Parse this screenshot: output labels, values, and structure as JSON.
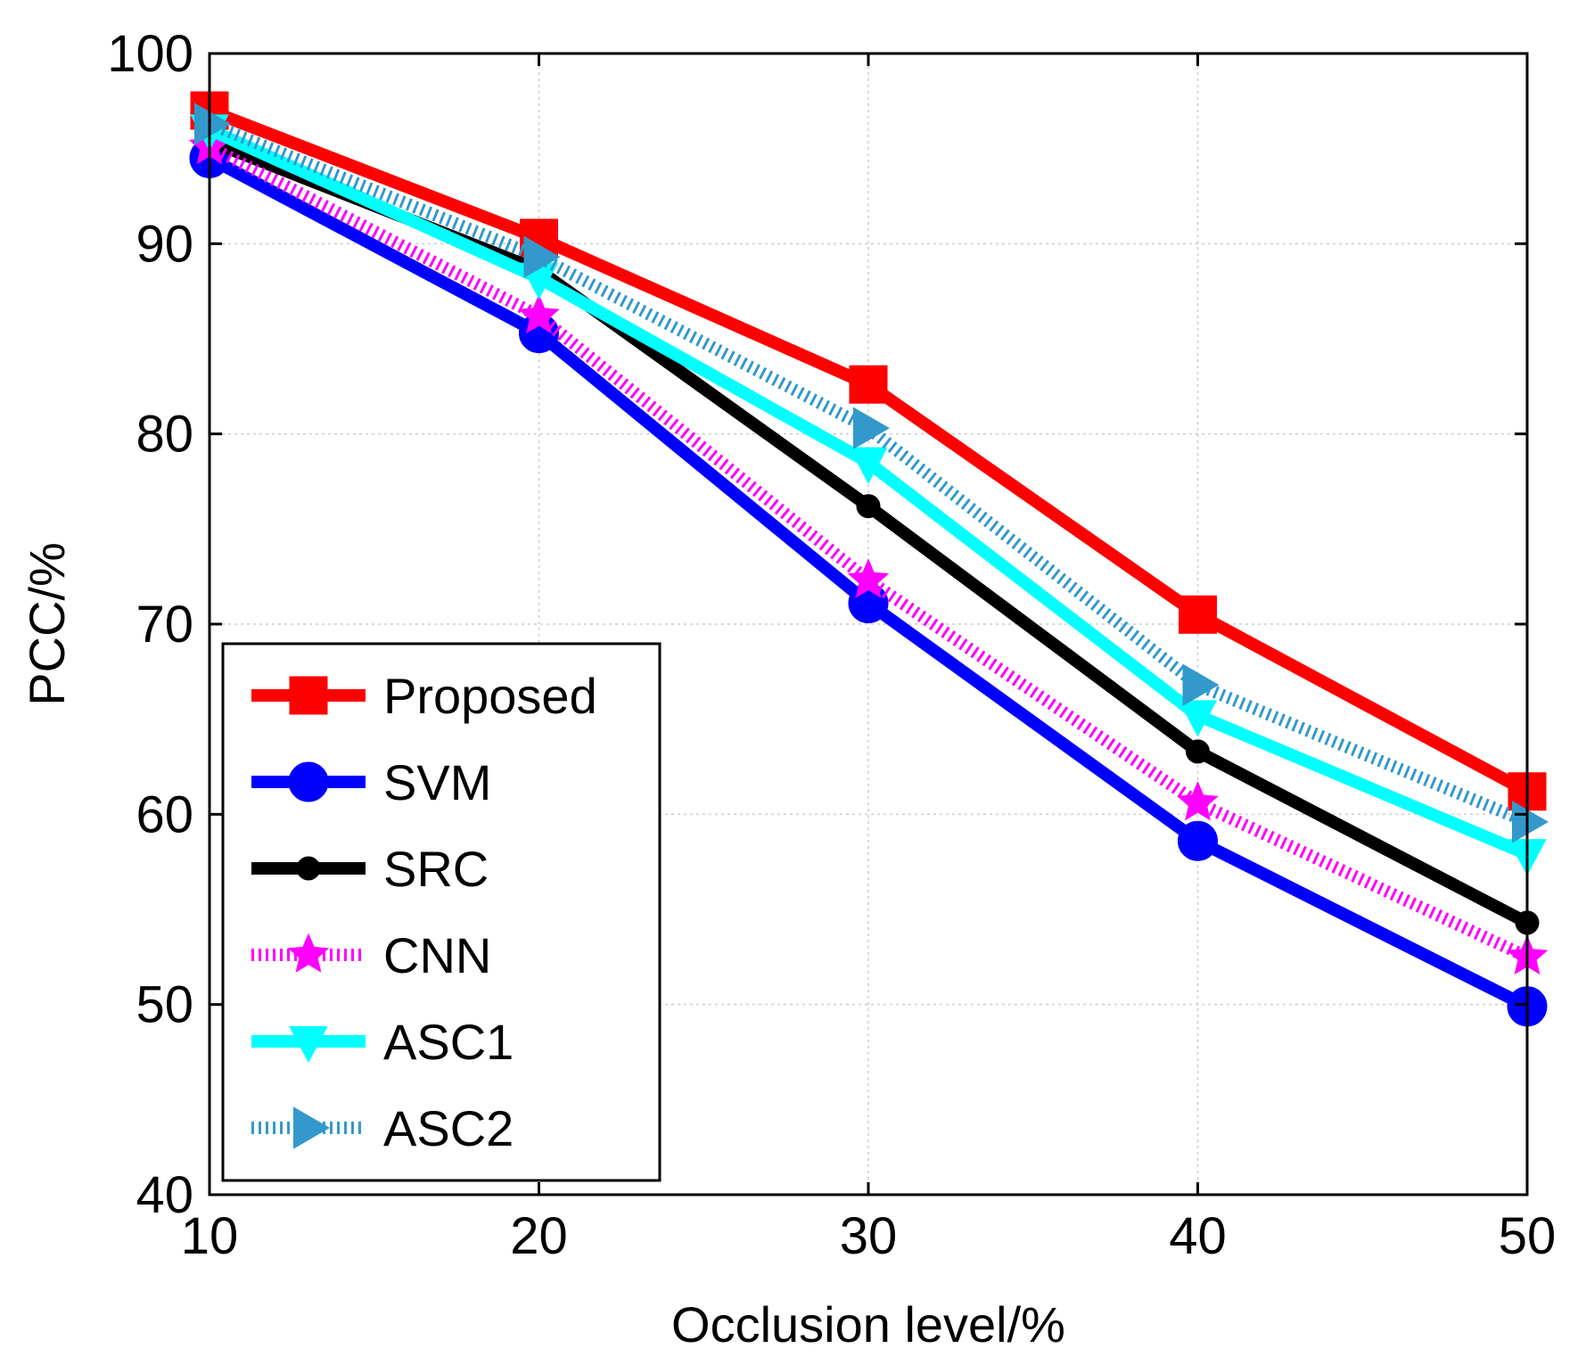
{
  "chart_data": {
    "type": "line",
    "title": "",
    "xlabel": "Occlusion level/%",
    "ylabel": "PCC/%",
    "x": [
      10,
      20,
      30,
      40,
      50
    ],
    "xlim": [
      10,
      50
    ],
    "ylim": [
      40,
      100
    ],
    "xticks": [
      "10",
      "20",
      "30",
      "40",
      "50"
    ],
    "yticks": [
      "40",
      "50",
      "60",
      "70",
      "80",
      "90",
      "100"
    ],
    "grid": true,
    "legend_position": "lower-left",
    "series": [
      {
        "name": "Proposed",
        "values": [
          97,
          90.3,
          82.6,
          70.5,
          61.2
        ],
        "color": "#ff0000",
        "marker": "square",
        "style": "solid"
      },
      {
        "name": "SVM",
        "values": [
          94.5,
          85.3,
          71.1,
          58.6,
          49.9
        ],
        "color": "#0000ff",
        "marker": "circle",
        "style": "solid"
      },
      {
        "name": "SRC",
        "values": [
          95.4,
          88.6,
          76.2,
          63.3,
          54.3
        ],
        "color": "#000000",
        "marker": "dot",
        "style": "solid"
      },
      {
        "name": "CNN",
        "values": [
          95.1,
          86.2,
          72.3,
          60.6,
          52.5
        ],
        "color": "#ff00ff",
        "marker": "star",
        "style": "dotted"
      },
      {
        "name": "ASC1",
        "values": [
          96,
          88.2,
          78.5,
          65.2,
          57.9
        ],
        "color": "#00ffff",
        "marker": "triangle-down",
        "style": "solid"
      },
      {
        "name": "ASC2",
        "values": [
          96.3,
          89.3,
          80.3,
          66.8,
          59.6
        ],
        "color": "#3399cc",
        "marker": "triangle-right",
        "style": "dotted"
      }
    ]
  }
}
